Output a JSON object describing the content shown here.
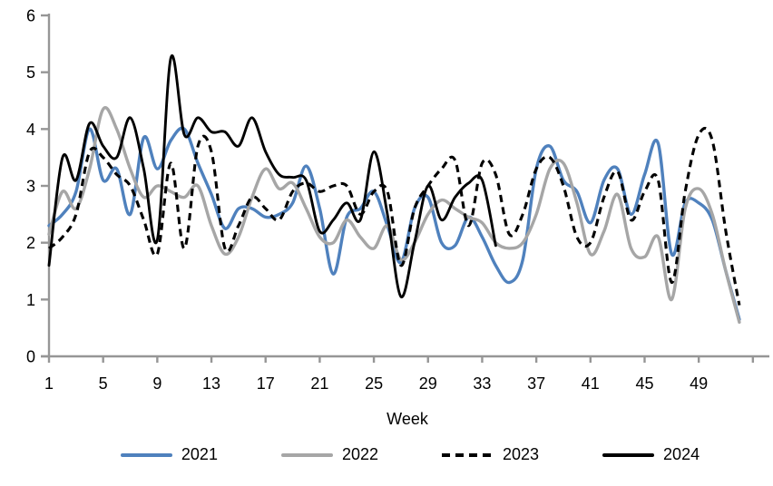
{
  "chart_data": {
    "type": "line",
    "title": "",
    "xlabel": "Week",
    "ylim": [
      0,
      6
    ],
    "yticks": [
      0,
      1,
      2,
      3,
      4,
      5,
      6
    ],
    "xticks": [
      1,
      5,
      9,
      13,
      17,
      21,
      25,
      29,
      33,
      37,
      41,
      45,
      49
    ],
    "x_start_week": 1,
    "x_end_week": 52,
    "grid": false,
    "legend_position": "bottom",
    "axis_color": "#969696",
    "text_color": "#000000",
    "series": [
      {
        "name": "2021",
        "color": "#4F81BD",
        "style": "solid",
        "start_week": 1,
        "values": [
          2.3,
          2.5,
          2.9,
          4.0,
          3.1,
          3.3,
          2.5,
          3.85,
          3.3,
          3.8,
          4.0,
          3.4,
          2.85,
          2.25,
          2.6,
          2.6,
          2.45,
          2.5,
          2.7,
          3.35,
          2.6,
          1.45,
          2.45,
          2.6,
          2.9,
          2.3,
          1.65,
          2.6,
          2.8,
          2.0,
          1.95,
          2.45,
          2.1,
          1.6,
          1.3,
          1.7,
          3.3,
          3.7,
          3.1,
          2.9,
          2.35,
          3.1,
          3.3,
          2.5,
          3.2,
          3.75,
          1.8,
          2.7,
          2.7,
          2.4,
          1.5,
          0.65
        ]
      },
      {
        "name": "2022",
        "color": "#A6A6A6",
        "style": "solid",
        "start_week": 1,
        "values": [
          2.15,
          2.9,
          2.6,
          3.3,
          4.35,
          4.0,
          3.3,
          2.8,
          3.0,
          2.9,
          2.8,
          3.0,
          2.3,
          1.8,
          2.1,
          2.8,
          3.3,
          2.95,
          3.05,
          2.6,
          2.1,
          2.0,
          2.4,
          2.1,
          1.9,
          2.3,
          1.7,
          2.0,
          2.5,
          2.75,
          2.6,
          2.45,
          2.35,
          2.0,
          1.9,
          2.0,
          2.5,
          3.3,
          3.4,
          2.7,
          1.8,
          2.2,
          2.85,
          1.9,
          1.75,
          2.1,
          1.0,
          2.6,
          2.95,
          2.5,
          1.5,
          0.6
        ]
      },
      {
        "name": "2023",
        "color": "#000000",
        "style": "dashed",
        "start_week": 1,
        "values": [
          1.9,
          2.1,
          2.5,
          3.6,
          3.5,
          3.2,
          3.0,
          2.4,
          1.8,
          3.4,
          1.9,
          3.7,
          3.6,
          1.9,
          2.3,
          2.8,
          2.6,
          2.4,
          2.9,
          3.05,
          2.9,
          3.0,
          3.0,
          2.5,
          2.9,
          2.9,
          1.6,
          2.6,
          3.0,
          3.3,
          3.45,
          2.3,
          3.4,
          3.2,
          2.15,
          2.5,
          3.3,
          3.5,
          3.0,
          2.1,
          2.0,
          2.8,
          3.25,
          2.4,
          2.9,
          3.1,
          1.3,
          2.9,
          3.9,
          3.8,
          2.2,
          0.9
        ]
      },
      {
        "name": "2024",
        "color": "#000000",
        "style": "solid",
        "start_week": 1,
        "values": [
          1.6,
          3.5,
          3.1,
          4.1,
          3.7,
          3.5,
          4.2,
          3.3,
          2.05,
          5.25,
          3.9,
          4.2,
          3.95,
          3.95,
          3.7,
          4.2,
          3.6,
          3.2,
          3.15,
          3.1,
          2.2,
          2.4,
          2.7,
          2.4,
          3.6,
          2.5,
          1.05,
          2.0,
          3.0,
          2.4,
          2.8,
          3.05,
          3.1,
          1.95
        ]
      }
    ]
  }
}
